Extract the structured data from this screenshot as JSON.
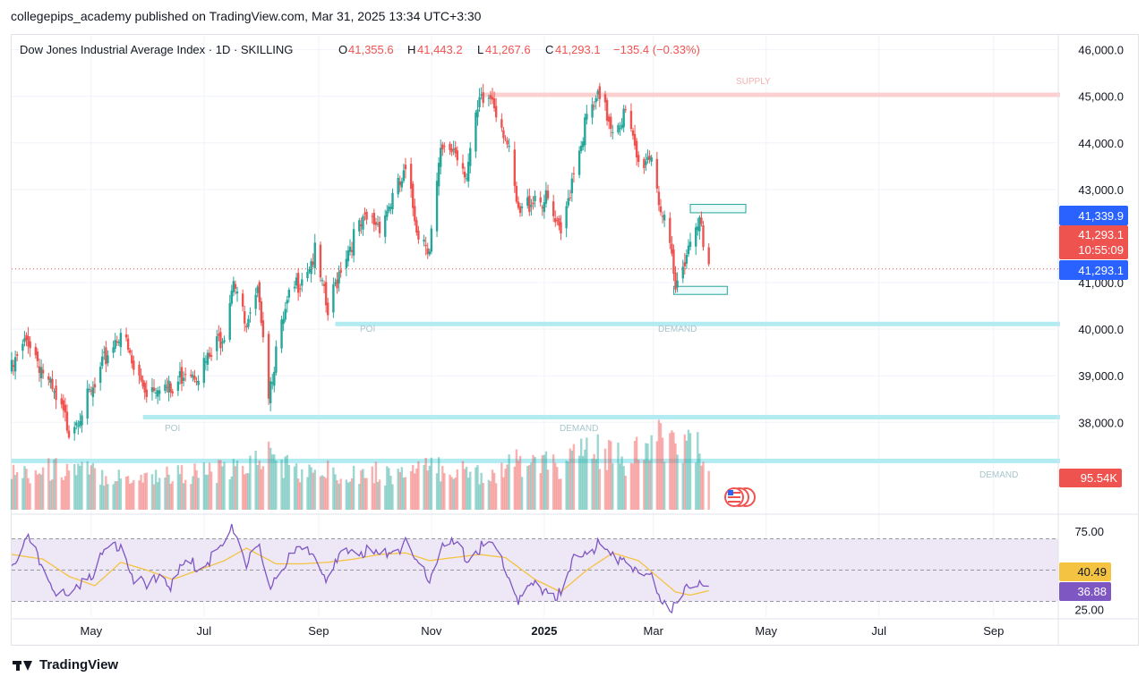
{
  "header": {
    "published_by": "collegepips_academy published on TradingView.com, Mar 31, 2025 13:34 UTC+3:30"
  },
  "legend": {
    "symbol": "Dow Jones Industrial Average Index · 1D · SKILLING",
    "o_label": "O",
    "o_value": "41,355.6",
    "h_label": "H",
    "h_value": "41,443.2",
    "l_label": "L",
    "l_value": "41,267.6",
    "c_label": "C",
    "c_value": "41,293.1",
    "change": "−135.4 (−0.33%)"
  },
  "price_badges": {
    "upper": "41,339.9",
    "last": "41,293.1",
    "countdown": "10:55:09",
    "lower": "41,293.1",
    "volume": "95.54K",
    "rsi": "40.49",
    "rsi_ma": "36.88"
  },
  "zone_labels": {
    "supply": "SUPPLY",
    "poi_top": "POI",
    "demand_top": "DEMAND",
    "poi_mid": "POI",
    "demand_mid": "DEMAND",
    "demand_low": "DEMAND"
  },
  "footer": {
    "brand": "TradingView"
  },
  "colors": {
    "up": "#26a69a",
    "down": "#ef5350",
    "zone": "#b2ebf2",
    "supply": "#fbd0d0",
    "rsi_line": "#7e57c2",
    "rsi_ma": "#f5c342",
    "rsi_band": "#ede7f6"
  },
  "chart_data": {
    "type": "candlestick",
    "price_axis_ticks": [
      "46,000.0",
      "45,000.0",
      "44,000.0",
      "43,000.0",
      "41,000.0",
      "40,000.0",
      "39,000.0",
      "38,000.0"
    ],
    "price_ylim": [
      36700,
      46300
    ],
    "rsi_axis_ticks": [
      "75.00",
      "25.00"
    ],
    "rsi_ylim": [
      20,
      80
    ],
    "x_ticks": [
      "May",
      "Jul",
      "Sep",
      "Nov",
      "2025",
      "Mar",
      "May",
      "Jul",
      "Sep"
    ],
    "x_tick_dates": [
      "2024-05-01",
      "2024-07-01",
      "2024-09-01",
      "2024-11-01",
      "2025-01-01",
      "2025-03-01",
      "2025-05-01",
      "2025-07-01",
      "2025-09-01"
    ],
    "x_range": [
      "2024-03-19",
      "2025-10-05"
    ],
    "last_bar_date": "2025-03-31",
    "price_path": [
      [
        "2024-03-19",
        39100
      ],
      [
        "2024-03-28",
        39800
      ],
      [
        "2024-04-05",
        39100
      ],
      [
        "2024-04-12",
        38400
      ],
      [
        "2024-04-19",
        37900
      ],
      [
        "2024-04-26",
        38300
      ],
      [
        "2024-05-03",
        38700
      ],
      [
        "2024-05-10",
        39500
      ],
      [
        "2024-05-17",
        40000
      ],
      [
        "2024-05-24",
        39100
      ],
      [
        "2024-05-31",
        38700
      ],
      [
        "2024-06-07",
        38900
      ],
      [
        "2024-06-14",
        38600
      ],
      [
        "2024-06-21",
        39200
      ],
      [
        "2024-06-28",
        39100
      ],
      [
        "2024-07-05",
        39400
      ],
      [
        "2024-07-12",
        40000
      ],
      [
        "2024-07-17",
        41200
      ],
      [
        "2024-07-24",
        39900
      ],
      [
        "2024-07-31",
        40800
      ],
      [
        "2024-08-05",
        38700
      ],
      [
        "2024-08-09",
        39500
      ],
      [
        "2024-08-16",
        40600
      ],
      [
        "2024-08-23",
        41200
      ],
      [
        "2024-08-30",
        41600
      ],
      [
        "2024-09-06",
        40300
      ],
      [
        "2024-09-13",
        41400
      ],
      [
        "2024-09-20",
        42000
      ],
      [
        "2024-09-27",
        42300
      ],
      [
        "2024-10-04",
        42300
      ],
      [
        "2024-10-11",
        42800
      ],
      [
        "2024-10-18",
        43300
      ],
      [
        "2024-10-25",
        42100
      ],
      [
        "2024-10-31",
        41800
      ],
      [
        "2024-11-06",
        43700
      ],
      [
        "2024-11-13",
        43900
      ],
      [
        "2024-11-20",
        43400
      ],
      [
        "2024-11-27",
        44800
      ],
      [
        "2024-12-04",
        45000
      ],
      [
        "2024-12-11",
        44200
      ],
      [
        "2024-12-18",
        42400
      ],
      [
        "2024-12-27",
        42900
      ],
      [
        "2025-01-03",
        42700
      ],
      [
        "2025-01-10",
        41900
      ],
      [
        "2025-01-17",
        43500
      ],
      [
        "2025-01-24",
        44500
      ],
      [
        "2025-01-30",
        44900
      ],
      [
        "2025-02-07",
        44400
      ],
      [
        "2025-02-14",
        44600
      ],
      [
        "2025-02-21",
        43500
      ],
      [
        "2025-02-28",
        43800
      ],
      [
        "2025-03-05",
        42600
      ],
      [
        "2025-03-11",
        41400
      ],
      [
        "2025-03-13",
        40800
      ],
      [
        "2025-03-18",
        41600
      ],
      [
        "2025-03-21",
        41900
      ],
      [
        "2025-03-26",
        42600
      ],
      [
        "2025-03-28",
        41600
      ],
      [
        "2025-03-31",
        41293.1
      ]
    ],
    "rsi_path": [
      [
        "2024-03-19",
        55
      ],
      [
        "2024-03-28",
        68
      ],
      [
        "2024-04-05",
        52
      ],
      [
        "2024-04-12",
        38
      ],
      [
        "2024-04-19",
        30
      ],
      [
        "2024-04-26",
        45
      ],
      [
        "2024-05-03",
        50
      ],
      [
        "2024-05-10",
        64
      ],
      [
        "2024-05-17",
        68
      ],
      [
        "2024-05-24",
        45
      ],
      [
        "2024-05-31",
        38
      ],
      [
        "2024-06-07",
        48
      ],
      [
        "2024-06-14",
        40
      ],
      [
        "2024-06-21",
        55
      ],
      [
        "2024-06-28",
        52
      ],
      [
        "2024-07-05",
        58
      ],
      [
        "2024-07-12",
        66
      ],
      [
        "2024-07-17",
        77
      ],
      [
        "2024-07-24",
        55
      ],
      [
        "2024-07-31",
        62
      ],
      [
        "2024-08-05",
        38
      ],
      [
        "2024-08-09",
        48
      ],
      [
        "2024-08-16",
        58
      ],
      [
        "2024-08-23",
        62
      ],
      [
        "2024-08-30",
        63
      ],
      [
        "2024-09-06",
        44
      ],
      [
        "2024-09-13",
        58
      ],
      [
        "2024-09-20",
        64
      ],
      [
        "2024-09-27",
        62
      ],
      [
        "2024-10-04",
        58
      ],
      [
        "2024-10-11",
        64
      ],
      [
        "2024-10-18",
        66
      ],
      [
        "2024-10-25",
        50
      ],
      [
        "2024-10-31",
        46
      ],
      [
        "2024-11-06",
        64
      ],
      [
        "2024-11-13",
        66
      ],
      [
        "2024-11-20",
        58
      ],
      [
        "2024-11-27",
        64
      ],
      [
        "2024-12-04",
        66
      ],
      [
        "2024-12-11",
        52
      ],
      [
        "2024-12-18",
        30
      ],
      [
        "2024-12-27",
        40
      ],
      [
        "2025-01-03",
        38
      ],
      [
        "2025-01-10",
        33
      ],
      [
        "2025-01-17",
        56
      ],
      [
        "2025-01-24",
        64
      ],
      [
        "2025-01-30",
        66
      ],
      [
        "2025-02-07",
        57
      ],
      [
        "2025-02-14",
        60
      ],
      [
        "2025-02-21",
        44
      ],
      [
        "2025-02-28",
        46
      ],
      [
        "2025-03-05",
        33
      ],
      [
        "2025-03-11",
        27
      ],
      [
        "2025-03-13",
        26
      ],
      [
        "2025-03-18",
        35
      ],
      [
        "2025-03-21",
        38
      ],
      [
        "2025-03-26",
        46
      ],
      [
        "2025-03-28",
        40
      ],
      [
        "2025-03-31",
        40.49
      ]
    ],
    "rsi_ma_path": [
      [
        "2024-03-19",
        60
      ],
      [
        "2024-04-05",
        57
      ],
      [
        "2024-04-19",
        46
      ],
      [
        "2024-05-03",
        40
      ],
      [
        "2024-05-17",
        55
      ],
      [
        "2024-05-31",
        50
      ],
      [
        "2024-06-14",
        44
      ],
      [
        "2024-06-28",
        50
      ],
      [
        "2024-07-12",
        56
      ],
      [
        "2024-07-24",
        64
      ],
      [
        "2024-08-09",
        54
      ],
      [
        "2024-08-23",
        54
      ],
      [
        "2024-09-06",
        55
      ],
      [
        "2024-09-20",
        57
      ],
      [
        "2024-10-04",
        60
      ],
      [
        "2024-10-18",
        61
      ],
      [
        "2024-10-31",
        56
      ],
      [
        "2024-11-13",
        58
      ],
      [
        "2024-11-27",
        60
      ],
      [
        "2024-12-11",
        58
      ],
      [
        "2024-12-27",
        44
      ],
      [
        "2025-01-10",
        36
      ],
      [
        "2025-01-24",
        50
      ],
      [
        "2025-02-07",
        61
      ],
      [
        "2025-02-21",
        56
      ],
      [
        "2025-03-05",
        44
      ],
      [
        "2025-03-13",
        36
      ],
      [
        "2025-03-21",
        34
      ],
      [
        "2025-03-31",
        36.88
      ]
    ],
    "volume_path": [
      [
        "2024-03-19",
        0.55
      ],
      [
        "2024-04-19",
        0.65
      ],
      [
        "2024-05-17",
        0.5
      ],
      [
        "2024-06-14",
        0.55
      ],
      [
        "2024-07-17",
        0.6
      ],
      [
        "2024-08-05",
        0.85
      ],
      [
        "2024-08-23",
        0.55
      ],
      [
        "2024-09-13",
        0.6
      ],
      [
        "2024-10-11",
        0.55
      ],
      [
        "2024-11-06",
        0.65
      ],
      [
        "2024-12-04",
        0.55
      ],
      [
        "2024-12-20",
        0.75
      ],
      [
        "2025-01-10",
        0.65
      ],
      [
        "2025-01-24",
        0.95
      ],
      [
        "2025-02-14",
        0.75
      ],
      [
        "2025-03-07",
        1.1
      ],
      [
        "2025-03-14",
        1.15
      ],
      [
        "2025-03-21",
        0.95
      ],
      [
        "2025-03-31",
        0.85
      ]
    ],
    "zones": [
      {
        "name": "supply",
        "price_low": 45000,
        "price_high": 45080,
        "from": "2024-11-29"
      },
      {
        "name": "poi-demand-top",
        "price_low": 40070,
        "price_high": 40160,
        "from": "2024-09-10"
      },
      {
        "name": "poi-demand-mid",
        "price_low": 38070,
        "price_high": 38160,
        "from": "2024-05-29"
      },
      {
        "name": "demand-low",
        "price_low": 37130,
        "price_high": 37220,
        "from": "2024-03-19"
      }
    ],
    "boxes": [
      {
        "name": "upper-box",
        "price_low": 42500,
        "price_high": 42680,
        "from": "2025-03-21",
        "to": "2025-04-20"
      },
      {
        "name": "lower-box",
        "price_low": 40750,
        "price_high": 40920,
        "from": "2025-03-12",
        "to": "2025-04-10"
      }
    ]
  }
}
